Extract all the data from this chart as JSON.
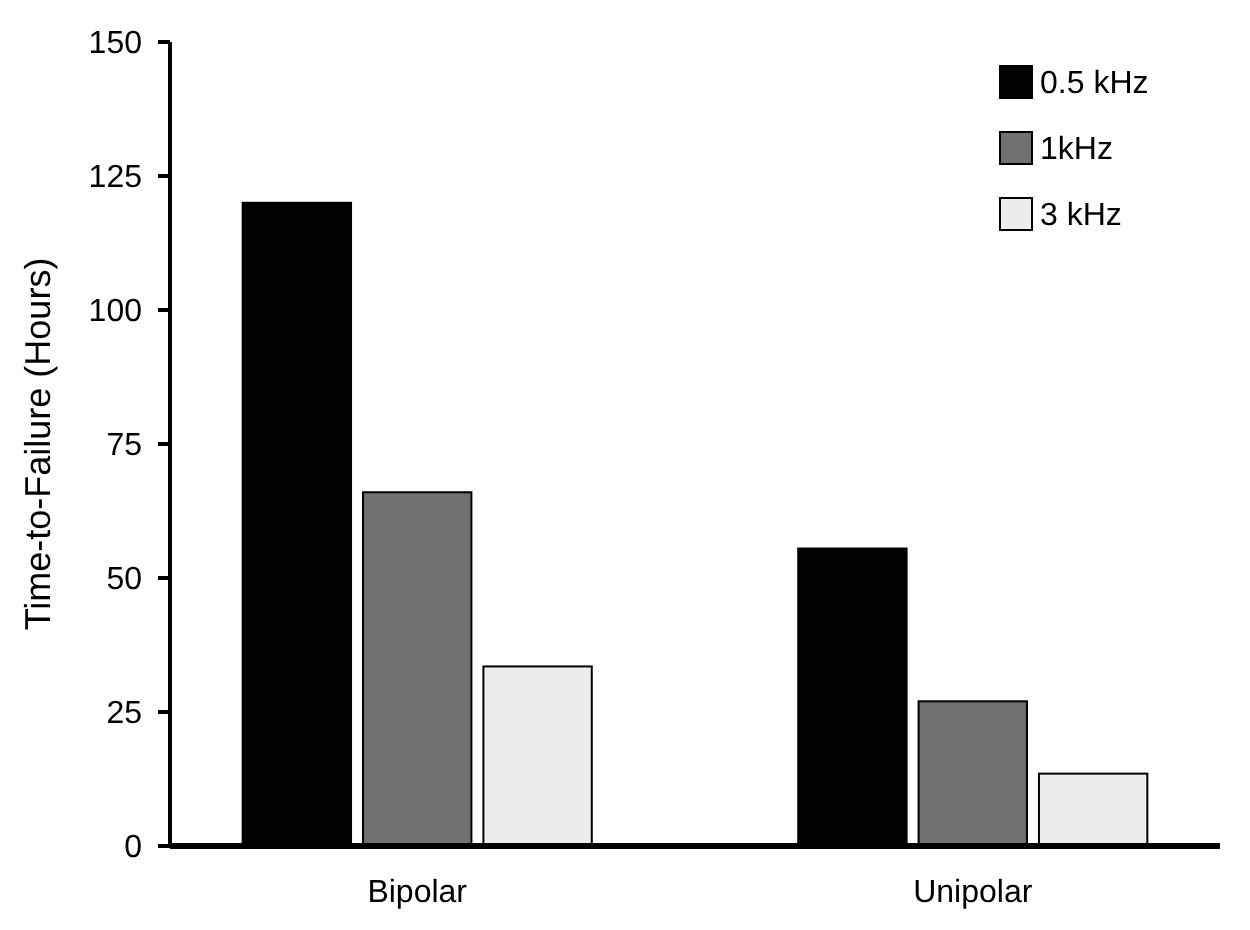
{
  "chart_data": {
    "type": "bar",
    "ylabel": "Time-to-Failure (Hours)",
    "categories": [
      "Bipolar",
      "Unipolar"
    ],
    "series": [
      {
        "name": "0.5 kHz",
        "color": "#000000",
        "values": [
          120,
          55.5
        ]
      },
      {
        "name": "1kHz",
        "color": "#707070",
        "values": [
          66,
          27
        ]
      },
      {
        "name": "3 kHz",
        "color": "#ececec",
        "values": [
          33.5,
          13.5
        ]
      }
    ],
    "ylim": [
      0,
      150
    ],
    "yticks": [
      0,
      25,
      50,
      75,
      100,
      125,
      150
    ],
    "grid": false,
    "legend": "top right"
  }
}
